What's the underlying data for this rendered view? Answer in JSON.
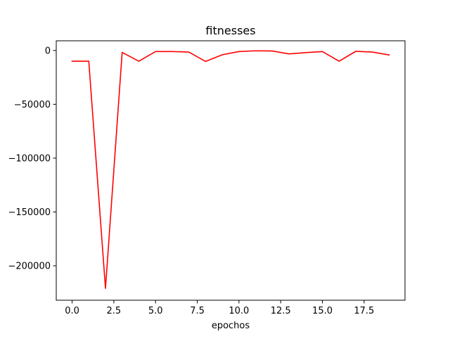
{
  "chart_data": {
    "type": "line",
    "title": "fitnesses",
    "xlabel": "epochos",
    "ylabel": "",
    "xlim": [
      -0.95,
      19.95
    ],
    "ylim": [
      -232000,
      9000
    ],
    "xticks": [
      0.0,
      2.5,
      5.0,
      7.5,
      10.0,
      12.5,
      15.0,
      17.5
    ],
    "xtick_labels": [
      "0.0",
      "2.5",
      "5.0",
      "7.5",
      "10.0",
      "12.5",
      "15.0",
      "17.5"
    ],
    "yticks": [
      0,
      -50000,
      -100000,
      -150000,
      -200000
    ],
    "ytick_labels": [
      "0",
      "−50000",
      "−100000",
      "−150000",
      "−200000"
    ],
    "grid": false,
    "series": [
      {
        "color": "#ff0000",
        "x": [
          0,
          1,
          2,
          3,
          4,
          5,
          6,
          7,
          8,
          9,
          10,
          11,
          12,
          13,
          14,
          15,
          16,
          17,
          18,
          19
        ],
        "y": [
          -10000,
          -10000,
          -221000,
          -1800,
          -10000,
          -1000,
          -1000,
          -1500,
          -10200,
          -4000,
          -1000,
          -300,
          -500,
          -3200,
          -2000,
          -1000,
          -10000,
          -800,
          -1500,
          -4200
        ]
      }
    ]
  }
}
